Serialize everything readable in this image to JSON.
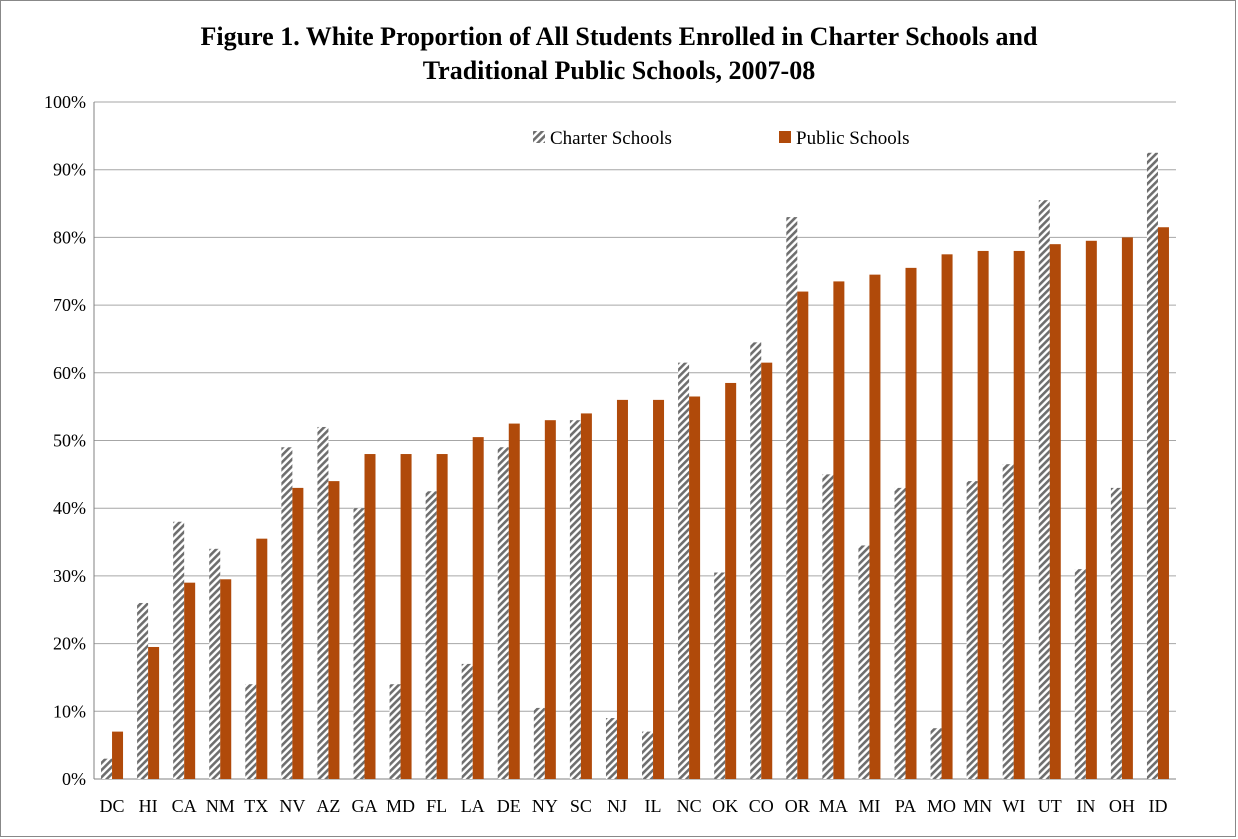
{
  "chart_data": {
    "type": "bar",
    "title": "Figure 1. White Proportion of All Students Enrolled in Charter Schools and Traditional Public Schools, 2007-08",
    "title_lines": [
      "Figure 1. White Proportion of All Students Enrolled in Charter Schools and",
      "Traditional Public Schools, 2007-08"
    ],
    "xlabel": "",
    "ylabel": "",
    "ylim": [
      0,
      100
    ],
    "yticks": [
      "0%",
      "10%",
      "20%",
      "30%",
      "40%",
      "50%",
      "60%",
      "70%",
      "80%",
      "90%",
      "100%"
    ],
    "grid": true,
    "legend_position": "top-center",
    "categories": [
      "DC",
      "HI",
      "CA",
      "NM",
      "TX",
      "NV",
      "AZ",
      "GA",
      "MD",
      "FL",
      "LA",
      "DE",
      "NY",
      "SC",
      "NJ",
      "IL",
      "NC",
      "OK",
      "CO",
      "OR",
      "MA",
      "MI",
      "PA",
      "MO",
      "MN",
      "WI",
      "UT",
      "IN",
      "OH",
      "ID"
    ],
    "series": [
      {
        "name": "Charter Schools",
        "color": "#7f7f7f",
        "pattern": "diagonal-hatch",
        "values": [
          3,
          26,
          38,
          34,
          14,
          49,
          52,
          40,
          14,
          42.5,
          17,
          49,
          10.5,
          53,
          9,
          7,
          61.5,
          30.5,
          64.5,
          83,
          45,
          34.5,
          43,
          7.5,
          44,
          46.5,
          85.5,
          31,
          43,
          92.5
        ]
      },
      {
        "name": "Public Schools",
        "color": "#b04a0a",
        "pattern": "solid",
        "values": [
          7,
          19.5,
          29,
          29.5,
          35.5,
          43,
          44,
          48,
          48,
          48,
          50.5,
          52.5,
          53,
          54,
          56,
          56,
          56.5,
          58.5,
          61.5,
          72,
          73.5,
          74.5,
          75.5,
          77.5,
          78,
          78,
          79,
          79.5,
          80,
          81.5
        ]
      }
    ]
  }
}
